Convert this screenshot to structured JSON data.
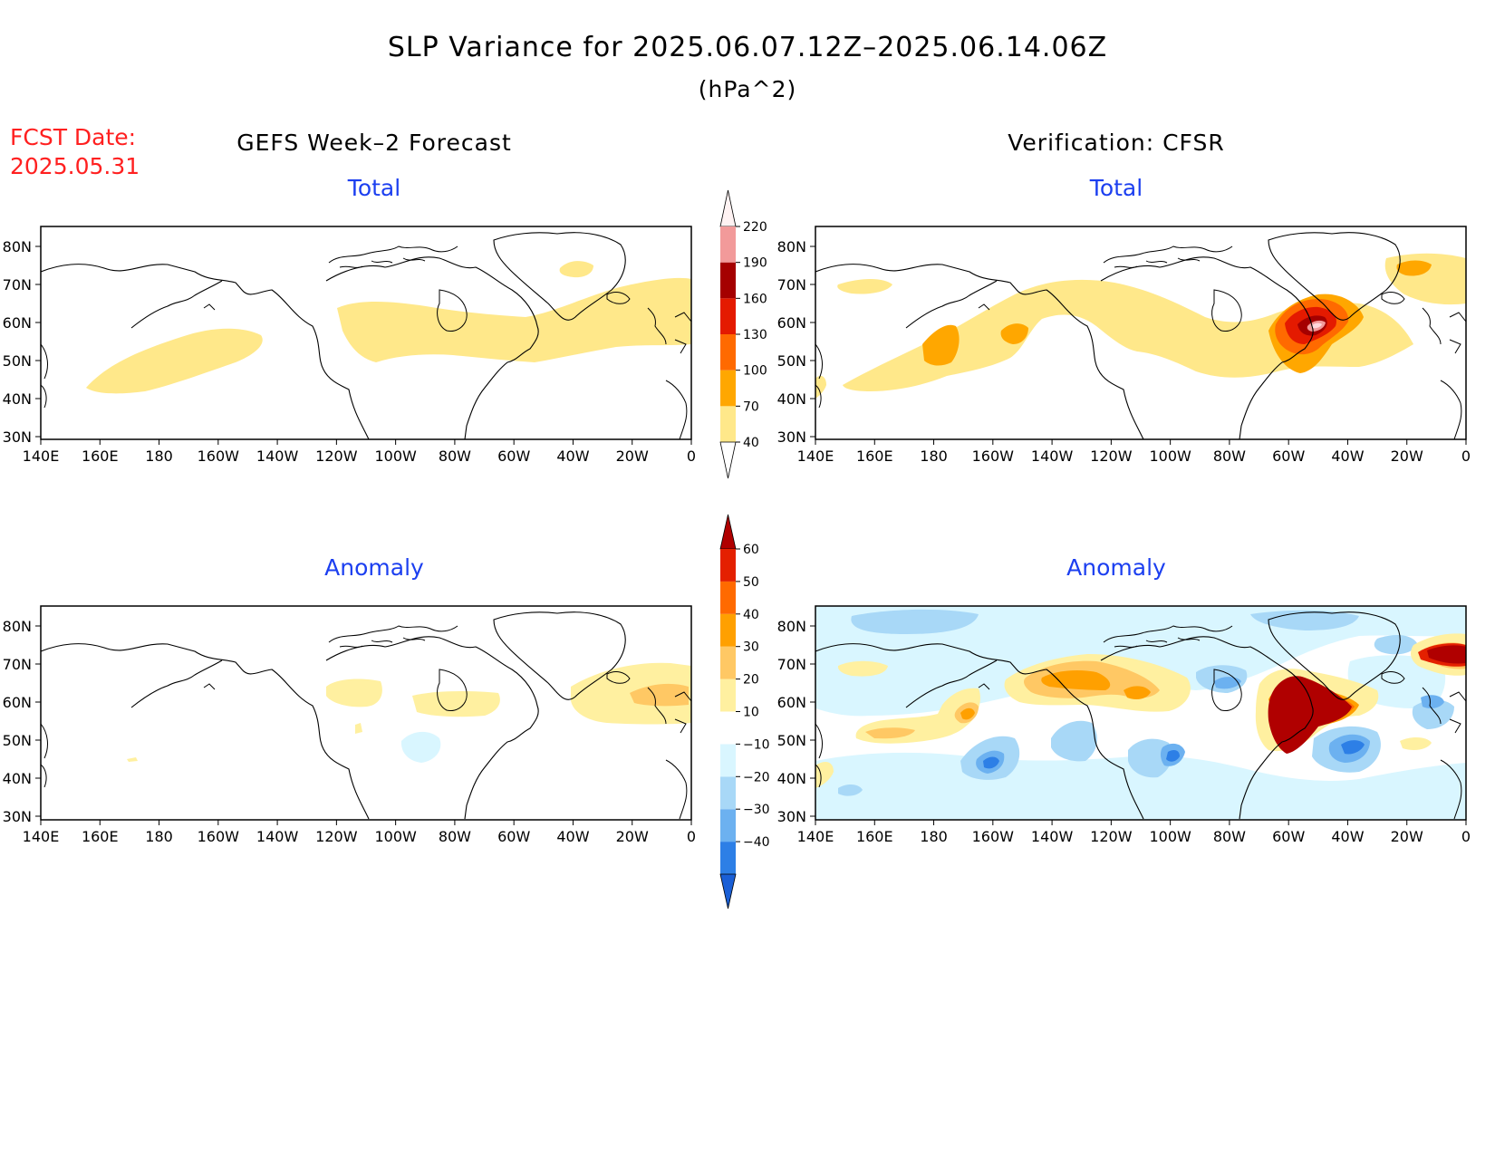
{
  "title": "SLP Variance for 2025.06.07.12Z–2025.06.14.06Z",
  "units": "(hPa^2)",
  "fcst_label": "FCST Date:",
  "fcst_date": "2025.05.31",
  "left_column_title": "GEFS Week–2 Forecast",
  "right_column_title": "Verification: CFSR",
  "panels": {
    "forecast_total": {
      "label": "Total"
    },
    "verif_total": {
      "label": "Total"
    },
    "forecast_anom": {
      "label": "Anomaly"
    },
    "verif_anom": {
      "label": "Anomaly"
    }
  },
  "lat_labels": [
    "80N",
    "70N",
    "60N",
    "50N",
    "40N",
    "30N"
  ],
  "lon_labels": [
    "140E",
    "160E",
    "180",
    "160W",
    "140W",
    "120W",
    "100W",
    "80W",
    "60W",
    "40W",
    "20W",
    "0"
  ],
  "total_colorbar": {
    "levels": [
      "40",
      "70",
      "100",
      "130",
      "160",
      "190",
      "220"
    ],
    "colors": [
      "#ffe88a",
      "#ffa700",
      "#ff6a00",
      "#e41a00",
      "#a50000",
      "#f29a9a",
      "#ffd9dc",
      "#fff3f3"
    ]
  },
  "anomaly_colorbar": {
    "levels": [
      "−40",
      "−30",
      "−20",
      "−10",
      "10",
      "20",
      "30",
      "40",
      "50",
      "60"
    ],
    "colors": [
      "#1a5fd6",
      "#2d7fe6",
      "#6cb1f0",
      "#a8d8f7",
      "#d9f6ff",
      "#ffffff",
      "#fff0a0",
      "#ffc864",
      "#ffa000",
      "#ff6a00",
      "#e42000",
      "#b00000"
    ]
  },
  "colors": {
    "title_red": "#ff2020",
    "label_blue": "#1c3ff0"
  }
}
